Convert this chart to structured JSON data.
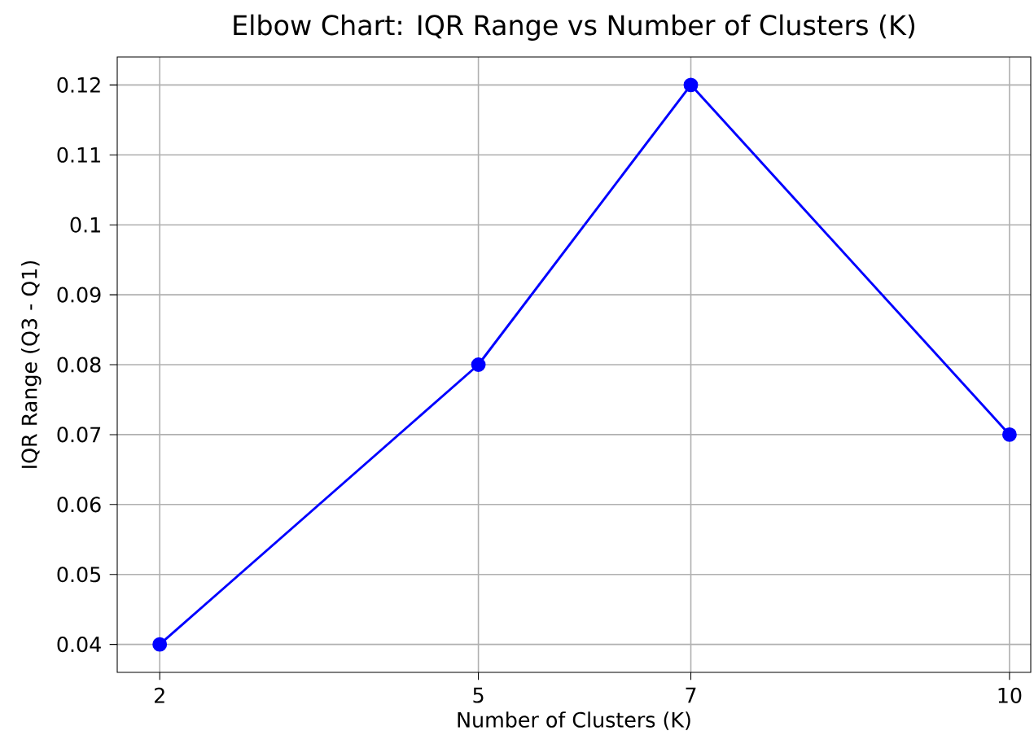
{
  "chart_data": {
    "type": "line",
    "title": "Elbow Chart: IQR Range vs Number of Clusters (K)",
    "xlabel": "Number of Clusters (K)",
    "ylabel": "IQR Range (Q3 - Q1)",
    "x": [
      2,
      5,
      7,
      10
    ],
    "series": [
      {
        "color": "#0000ff",
        "values": [
          0.04,
          0.08,
          0.12,
          0.07
        ]
      }
    ],
    "xlim": [
      1.6,
      10.2
    ],
    "ylim": [
      0.036,
      0.124
    ],
    "xticks": [
      2,
      5,
      7,
      10
    ],
    "yticks": [
      0.04,
      0.05,
      0.06,
      0.07,
      0.08,
      0.09,
      0.1,
      0.11,
      0.12
    ],
    "grid": true,
    "marker": "circle",
    "line_style": "solid"
  }
}
